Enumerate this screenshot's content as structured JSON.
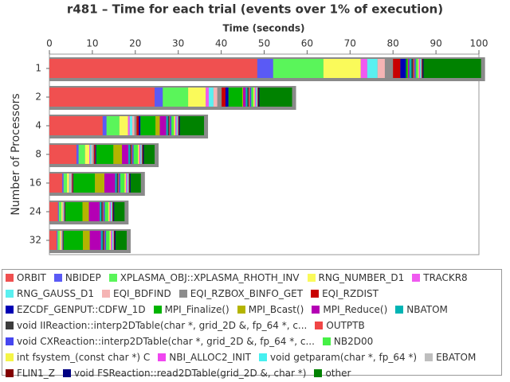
{
  "chart_data": {
    "type": "stacked-bar-horizontal",
    "title": "r481 – Time for each trial (events over 1% of execution)",
    "x_label": "Time (seconds)",
    "y_label": "Number of Processors",
    "categories": [
      "1",
      "2",
      "4",
      "8",
      "16",
      "24",
      "32"
    ],
    "xlim": [
      0,
      100
    ],
    "xticks": [
      0,
      10,
      20,
      30,
      40,
      50,
      60,
      70,
      80,
      90,
      100
    ],
    "series": [
      {
        "name": "ORBIT",
        "color": "#f05050",
        "values": [
          48.4,
          24.5,
          12.4,
          6.3,
          3.0,
          2.0,
          1.7
        ]
      },
      {
        "name": "NBIDEP",
        "color": "#5a5af5",
        "values": [
          3.7,
          1.9,
          0.9,
          0.5,
          0.3,
          0.2,
          0.2
        ]
      },
      {
        "name": "XPLASMA_OBJ::XPLASMA_RHOTH_INV",
        "color": "#5af55a",
        "values": [
          11.7,
          5.9,
          3.0,
          1.5,
          0.8,
          0.6,
          0.5
        ]
      },
      {
        "name": "RNG_NUMBER_D1",
        "color": "#fafa5a",
        "values": [
          8.7,
          4.1,
          2.0,
          1.0,
          0.5,
          0.3,
          0.3
        ]
      },
      {
        "name": "TRACKR8",
        "color": "#f05af0",
        "values": [
          1.5,
          0.7,
          0.4,
          0.2,
          0.1,
          0.1,
          0.1
        ]
      },
      {
        "name": "RNG_GAUSS_D1",
        "color": "#5af0f0",
        "values": [
          2.4,
          1.1,
          0.6,
          0.3,
          0.2,
          0.1,
          0.1
        ]
      },
      {
        "name": "EQI_BDFIND",
        "color": "#f5b4b4",
        "values": [
          1.7,
          0.9,
          0.5,
          0.3,
          0.2,
          0.1,
          0.1
        ]
      },
      {
        "name": "EQI_RZBOX_BINFO_GET",
        "color": "#8c8c8c",
        "values": [
          1.9,
          1.0,
          0.5,
          0.3,
          0.2,
          0.1,
          0.1
        ]
      },
      {
        "name": "EQI_RZDIST",
        "color": "#c80000",
        "values": [
          1.7,
          0.9,
          0.5,
          0.3,
          0.2,
          0.1,
          0.1
        ]
      },
      {
        "name": "EZCDF_GENPUT::CDFW_1D",
        "color": "#0000b4",
        "values": [
          1.3,
          0.7,
          0.4,
          0.2,
          0.1,
          0.1,
          0.1
        ]
      },
      {
        "name": "MPI_Finalize()",
        "color": "#00b400",
        "values": [
          0.4,
          3.2,
          3.5,
          4.0,
          5.0,
          4.0,
          4.5
        ]
      },
      {
        "name": "MPI_Bcast()",
        "color": "#b4b400",
        "values": [
          0.1,
          0.2,
          1.0,
          2.0,
          2.2,
          1.5,
          1.6
        ]
      },
      {
        "name": "MPI_Reduce()",
        "color": "#b400b4",
        "values": [
          0.3,
          0.6,
          1.5,
          1.5,
          2.5,
          2.5,
          2.6
        ]
      },
      {
        "name": "NBATOM",
        "color": "#00b4b4",
        "values": [
          0.5,
          0.4,
          0.4,
          0.4,
          0.4,
          0.4,
          0.4
        ]
      },
      {
        "name": "void IIReaction::interp2DTable(char *, grid_2D &, fp_64 *, c...",
        "color": "#3c3c3c",
        "values": [
          0.4,
          0.3,
          0.3,
          0.3,
          0.3,
          0.3,
          0.3
        ]
      },
      {
        "name": "OUTPTB",
        "color": "#f04646",
        "values": [
          0.3,
          0.3,
          0.2,
          0.2,
          0.2,
          0.2,
          0.2
        ]
      },
      {
        "name": "void CXReaction::interp2DTable(char *, grid_2D &, fp_64 *, c...",
        "color": "#4646f0",
        "values": [
          0.3,
          0.3,
          0.3,
          0.3,
          0.3,
          0.3,
          0.3
        ]
      },
      {
        "name": "NB2D00",
        "color": "#46f046",
        "values": [
          0.5,
          0.5,
          0.6,
          1.0,
          1.0,
          0.8,
          0.8
        ]
      },
      {
        "name": "int fsystem_(const char *) C",
        "color": "#f5f546",
        "values": [
          0.2,
          0.3,
          0.3,
          0.3,
          0.3,
          0.3,
          0.3
        ]
      },
      {
        "name": "NBI_ALLOC2_INIT",
        "color": "#f046f0",
        "values": [
          0.3,
          0.3,
          0.3,
          0.3,
          0.3,
          0.3,
          0.3
        ]
      },
      {
        "name": "void getparam(char *, fp_64 *)",
        "color": "#46f0f0",
        "values": [
          0.2,
          0.2,
          0.2,
          0.2,
          0.2,
          0.2,
          0.2
        ]
      },
      {
        "name": "EBATOM",
        "color": "#bebebe",
        "values": [
          0.2,
          0.2,
          0.2,
          0.2,
          0.2,
          0.2,
          0.2
        ]
      },
      {
        "name": "FLIN1_Z",
        "color": "#820000",
        "values": [
          0.2,
          0.2,
          0.2,
          0.2,
          0.2,
          0.2,
          0.2
        ]
      },
      {
        "name": "void FSReaction::read2DTable(grid_2D &, char *)",
        "color": "#000082",
        "values": [
          0.2,
          0.2,
          0.2,
          0.2,
          0.2,
          0.2,
          0.2
        ]
      },
      {
        "name": "other",
        "color": "#008200",
        "values": [
          13.4,
          7.6,
          5.6,
          2.5,
          2.4,
          2.4,
          2.6
        ]
      }
    ]
  }
}
